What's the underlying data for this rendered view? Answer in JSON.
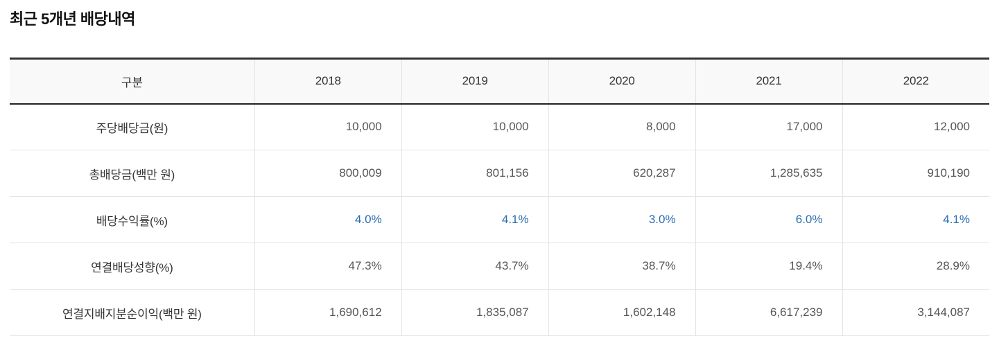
{
  "page": {
    "title": "최근 5개년 배당내역"
  },
  "table": {
    "columns": [
      "구분",
      "2018",
      "2019",
      "2020",
      "2021",
      "2022"
    ],
    "rows": [
      {
        "label": "주당배당금(원)",
        "values": [
          "10,000",
          "10,000",
          "8,000",
          "17,000",
          "12,000"
        ],
        "highlighted": false
      },
      {
        "label": "총배당금(백만 원)",
        "values": [
          "800,009",
          "801,156",
          "620,287",
          "1,285,635",
          "910,190"
        ],
        "highlighted": false
      },
      {
        "label": "배당수익률(%)",
        "values": [
          "4.0%",
          "4.1%",
          "3.0%",
          "6.0%",
          "4.1%"
        ],
        "highlighted": true
      },
      {
        "label": "연결배당성향(%)",
        "values": [
          "47.3%",
          "43.7%",
          "38.7%",
          "19.4%",
          "28.9%"
        ],
        "highlighted": false
      },
      {
        "label": "연결지배지분순이익(백만 원)",
        "values": [
          "1,690,612",
          "1,835,087",
          "1,602,148",
          "6,617,239",
          "3,144,087"
        ],
        "highlighted": false
      }
    ]
  },
  "colors": {
    "value_highlight": "#2b6cb3",
    "header_background": "#f9f9f9",
    "table_top_border": "#333333",
    "row_divider": "#e4e4e4"
  }
}
